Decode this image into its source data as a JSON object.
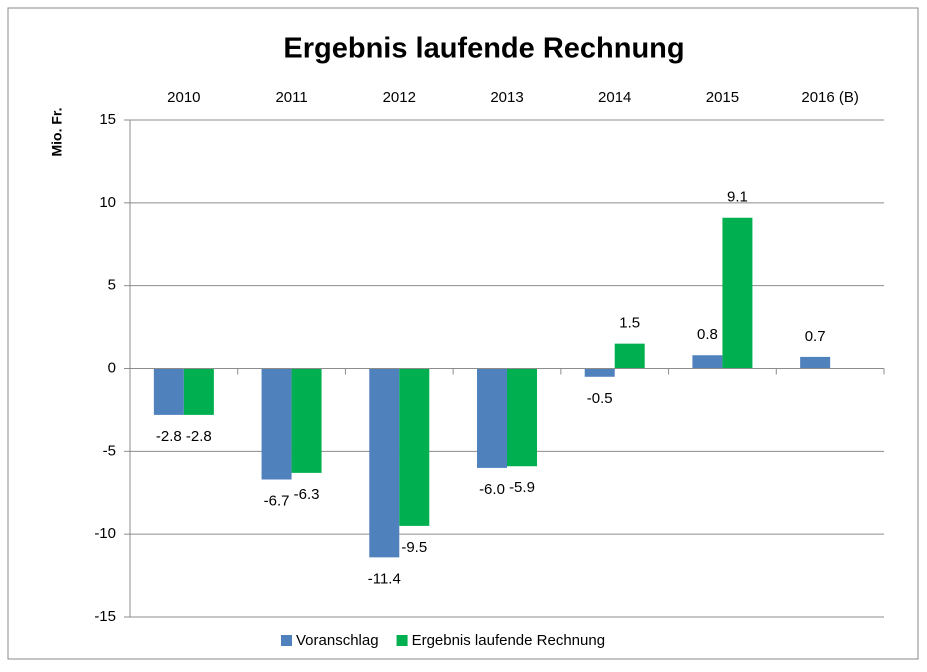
{
  "chart_data": {
    "type": "bar",
    "title": "Ergebnis laufende Rechnung",
    "y_label": "Mio. Fr.",
    "categories": [
      "2010",
      "2011",
      "2012",
      "2013",
      "2014",
      "2015",
      "2016 (B)"
    ],
    "series": [
      {
        "name": "Voranschlag",
        "color": "#4f81bd",
        "values": [
          -2.8,
          -6.7,
          -11.4,
          -6.0,
          -0.5,
          0.8,
          0.7
        ],
        "value_labels": [
          "-2.8",
          "-6.7",
          "-11.4",
          "-6.0",
          "-0.5",
          "0.8",
          "0.7"
        ]
      },
      {
        "name": "Ergebnis laufende Rechnung",
        "color": "#00b050",
        "values": [
          -2.8,
          -6.3,
          -9.5,
          -5.9,
          1.5,
          9.1,
          null
        ],
        "value_labels": [
          "-2.8",
          "-6.3",
          "-9.5",
          "-5.9",
          "1.5",
          "9.1",
          null
        ]
      }
    ],
    "ylim": [
      -15,
      15
    ],
    "yticks": [
      15,
      10,
      5,
      0,
      -5,
      -10,
      -15
    ],
    "grid": true,
    "legend": "bottom"
  }
}
